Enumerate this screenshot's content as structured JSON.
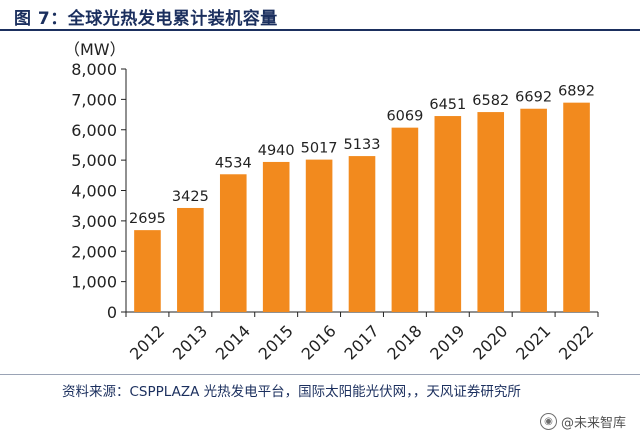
{
  "header": {
    "title": "图 7：全球光热发电累计装机容量"
  },
  "source_note": "资料来源：CSPPLAZA 光热发电平台，国际太阳能光伏网，，天风证券研究所",
  "watermark": {
    "text": "@未来智库",
    "icon": "weibo-icon"
  },
  "colors": {
    "bar": "#F28A1E",
    "title": "#1B2F5E",
    "axis": "#222222"
  },
  "chart_data": {
    "type": "bar",
    "title": "",
    "unit_label": "（MW）",
    "categories": [
      "2012",
      "2013",
      "2014",
      "2015",
      "2016",
      "2017",
      "2018",
      "2019",
      "2020",
      "2021",
      "2022"
    ],
    "values": [
      2695,
      3425,
      4534,
      4940,
      5017,
      5133,
      6069,
      6451,
      6582,
      6692,
      6892
    ],
    "ylim": [
      0,
      8000
    ],
    "yticks": [
      0,
      1000,
      2000,
      3000,
      4000,
      5000,
      6000,
      7000,
      8000
    ],
    "ytick_labels": [
      "0",
      "1,000",
      "2,000",
      "3,000",
      "4,000",
      "5,000",
      "6,000",
      "7,000",
      "8,000"
    ],
    "grid": false,
    "data_labels": true
  }
}
